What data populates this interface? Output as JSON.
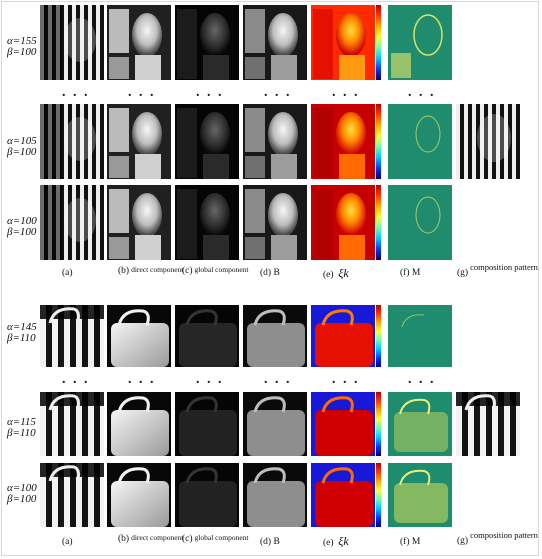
{
  "figure": {
    "upper": {
      "rows": [
        {
          "alpha": "α=155",
          "beta": "β=100"
        },
        {
          "alpha": "α=105",
          "beta": "β=100"
        },
        {
          "alpha": "α=100",
          "beta": "β=100"
        }
      ],
      "ellipsis": ". . .",
      "captions": {
        "a": "(a)",
        "b": "(b)",
        "b_sub": "direct component",
        "c": "(c)",
        "c_sub": "global component",
        "d": "(d)  B",
        "e": "(e)",
        "e_math": "ξk",
        "f": "(f)  M",
        "g": "(g)",
        "g_sub": "composition pattern"
      }
    },
    "lower": {
      "rows": [
        {
          "alpha": "α=145",
          "beta": "β=110"
        },
        {
          "alpha": "α=115",
          "beta": "β=110"
        },
        {
          "alpha": "α=100",
          "beta": "β=100"
        }
      ],
      "ellipsis": ". . .",
      "captions": {
        "a": "(a)",
        "b": "(b)",
        "b_sub": "direct component",
        "c": "(c)",
        "c_sub": "global component",
        "d": "(d)  B",
        "e": "(e)",
        "e_math": "ξk",
        "f": "(f)  M",
        "g": "(g)",
        "g_sub": "composition pattern"
      }
    }
  }
}
